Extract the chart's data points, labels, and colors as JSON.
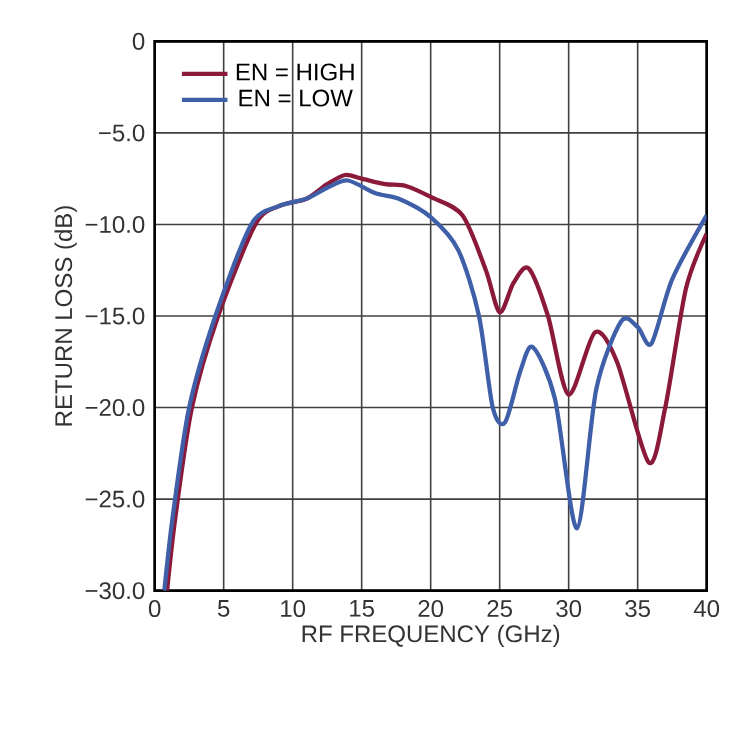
{
  "chart_data": {
    "type": "line",
    "xlabel": "RF FREQUENCY (GHz)",
    "ylabel": "RETURN LOSS (dB)",
    "xlim": [
      0,
      40
    ],
    "ylim": [
      -30,
      0
    ],
    "xticks": [
      0,
      5,
      10,
      15,
      20,
      25,
      30,
      35,
      40
    ],
    "yticks": [
      {
        "value": -30,
        "label": "−30.0"
      },
      {
        "value": -25,
        "label": "−25.0"
      },
      {
        "value": -20,
        "label": "−20.0"
      },
      {
        "value": -15,
        "label": "−15.0"
      },
      {
        "value": -10,
        "label": "−10.0"
      },
      {
        "value": -5,
        "label": "−5.0"
      },
      0
    ],
    "grid": true,
    "legend": "top left",
    "line_style": "solid",
    "marker": "none",
    "series": [
      {
        "name": "EN = HIGH",
        "color": "#8b1a3a",
        "x": [
          0.9,
          1.5,
          2.7,
          4.6,
          7.3,
          9,
          11,
          12.5,
          13.8,
          15,
          16.7,
          18.2,
          20,
          22.3,
          24,
          25,
          26,
          27.1,
          28.5,
          30,
          31.9,
          33.5,
          35.8,
          37,
          38.5,
          40
        ],
        "values": [
          -30,
          -26,
          -20,
          -15,
          -10,
          -9,
          -8.6,
          -7.8,
          -7.3,
          -7.5,
          -7.8,
          -7.9,
          -8.5,
          -9.5,
          -12.5,
          -14.8,
          -13.2,
          -12.4,
          -15,
          -19.3,
          -15.9,
          -17.5,
          -23,
          -20,
          -13.5,
          -10.5
        ]
      },
      {
        "name": "EN = LOW",
        "color": "#3f5fa8",
        "x": [
          0.7,
          1.3,
          2.5,
          4.4,
          7,
          9,
          11,
          12.5,
          14,
          16,
          17.7,
          20,
          22,
          23.5,
          24.5,
          25.4,
          26.5,
          27.4,
          29,
          30.6,
          32,
          33.8,
          35,
          36,
          37.5,
          40
        ],
        "values": [
          -30,
          -26,
          -20,
          -15,
          -10,
          -9,
          -8.6,
          -8,
          -7.6,
          -8.3,
          -8.6,
          -9.6,
          -11.4,
          -15,
          -20,
          -20.8,
          -18,
          -16.7,
          -19.5,
          -26.6,
          -19,
          -15.3,
          -15.6,
          -16.5,
          -13,
          -9.5
        ]
      }
    ]
  }
}
